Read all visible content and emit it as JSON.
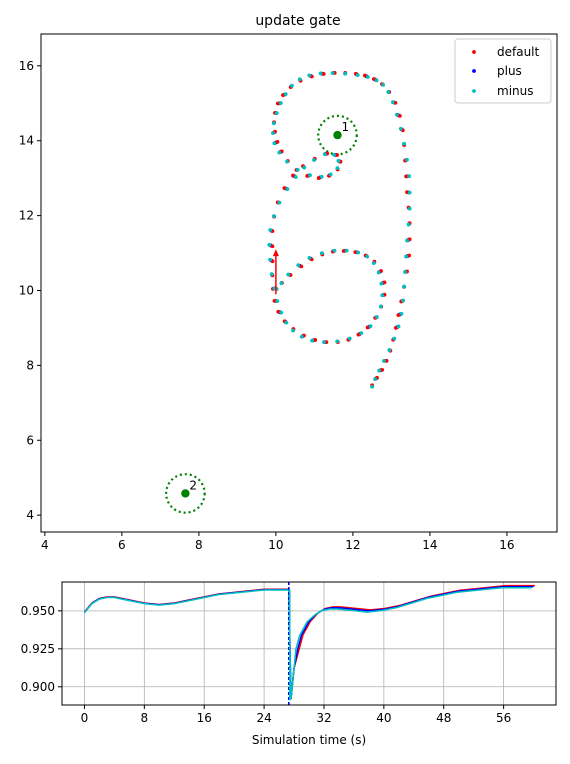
{
  "chart_data": [
    {
      "type": "scatter",
      "title": "update gate",
      "xlim": [
        3.9,
        17.3
      ],
      "ylim": [
        3.55,
        16.85
      ],
      "xticks": [
        4,
        6,
        8,
        10,
        12,
        14,
        16
      ],
      "yticks": [
        4,
        6,
        8,
        10,
        12,
        14,
        16
      ],
      "grid": false,
      "legend": "top-right",
      "series": [
        {
          "name": "default",
          "color": "#ff0000"
        },
        {
          "name": "plus",
          "color": "#0000ff"
        },
        {
          "name": "minus",
          "color": "#00bfbf"
        }
      ],
      "trajectory_default": [
        [
          12.5,
          7.45
        ],
        [
          12.6,
          7.65
        ],
        [
          12.72,
          7.87
        ],
        [
          12.84,
          8.12
        ],
        [
          12.96,
          8.4
        ],
        [
          13.06,
          8.7
        ],
        [
          13.15,
          9.02
        ],
        [
          13.22,
          9.36
        ],
        [
          13.28,
          9.72
        ],
        [
          13.33,
          10.1
        ],
        [
          13.38,
          10.5
        ],
        [
          13.42,
          10.92
        ],
        [
          13.44,
          11.35
        ],
        [
          13.46,
          11.78
        ],
        [
          13.46,
          12.2
        ],
        [
          13.44,
          12.62
        ],
        [
          13.42,
          13.05
        ],
        [
          13.38,
          13.48
        ],
        [
          13.33,
          13.9
        ],
        [
          13.27,
          14.3
        ],
        [
          13.18,
          14.68
        ],
        [
          13.07,
          15.02
        ],
        [
          12.93,
          15.3
        ],
        [
          12.77,
          15.5
        ],
        [
          12.58,
          15.63
        ],
        [
          12.35,
          15.72
        ],
        [
          12.1,
          15.77
        ],
        [
          11.8,
          15.8
        ],
        [
          11.5,
          15.81
        ],
        [
          11.2,
          15.79
        ],
        [
          10.9,
          15.73
        ],
        [
          10.63,
          15.62
        ],
        [
          10.4,
          15.45
        ],
        [
          10.22,
          15.23
        ],
        [
          10.09,
          15.0
        ],
        [
          10.0,
          14.74
        ],
        [
          9.95,
          14.48
        ],
        [
          9.95,
          14.22
        ],
        [
          10.0,
          13.95
        ],
        [
          10.12,
          13.7
        ],
        [
          10.3,
          13.45
        ],
        [
          10.55,
          13.22
        ],
        [
          10.85,
          13.07
        ],
        [
          11.15,
          13.02
        ],
        [
          11.4,
          13.08
        ],
        [
          11.6,
          13.25
        ],
        [
          11.65,
          13.45
        ],
        [
          11.55,
          13.62
        ],
        [
          11.3,
          13.65
        ],
        [
          11.0,
          13.5
        ],
        [
          10.72,
          13.3
        ],
        [
          10.48,
          13.05
        ],
        [
          10.26,
          12.72
        ],
        [
          10.07,
          12.35
        ],
        [
          9.95,
          11.98
        ],
        [
          9.88,
          11.6
        ],
        [
          9.87,
          11.2
        ],
        [
          9.88,
          10.8
        ],
        [
          9.9,
          10.42
        ],
        [
          9.94,
          10.05
        ],
        [
          10.0,
          9.72
        ],
        [
          10.1,
          9.42
        ],
        [
          10.25,
          9.16
        ],
        [
          10.45,
          8.95
        ],
        [
          10.7,
          8.78
        ],
        [
          10.98,
          8.67
        ],
        [
          11.28,
          8.62
        ],
        [
          11.6,
          8.63
        ],
        [
          11.9,
          8.7
        ],
        [
          12.18,
          8.84
        ],
        [
          12.42,
          9.03
        ],
        [
          12.6,
          9.28
        ],
        [
          12.73,
          9.57
        ],
        [
          12.79,
          9.88
        ],
        [
          12.78,
          10.2
        ],
        [
          12.7,
          10.5
        ],
        [
          12.55,
          10.75
        ],
        [
          12.35,
          10.92
        ],
        [
          12.1,
          11.02
        ],
        [
          11.8,
          11.06
        ],
        [
          11.5,
          11.05
        ],
        [
          11.2,
          10.98
        ],
        [
          10.9,
          10.85
        ],
        [
          10.62,
          10.66
        ],
        [
          10.35,
          10.42
        ],
        [
          10.15,
          10.2
        ],
        [
          10.0,
          10.05
        ]
      ],
      "arrow": {
        "x": 10.0,
        "y0": 9.9,
        "y1": 11.05,
        "color": "#ff0000"
      },
      "goals": [
        {
          "label": "1",
          "x": 11.6,
          "y": 14.15,
          "radius": 0.5
        },
        {
          "label": "2",
          "x": 7.65,
          "y": 4.58,
          "radius": 0.5
        }
      ]
    },
    {
      "type": "line",
      "xlabel": "Simulation time (s)",
      "xlim": [
        -3,
        63
      ],
      "ylim": [
        0.888,
        0.969
      ],
      "xticks": [
        0,
        8,
        16,
        24,
        32,
        40,
        48,
        56
      ],
      "yticks": [
        0.9,
        0.925,
        0.95
      ],
      "ytick_labels": [
        "0.900",
        "0.925",
        "0.950"
      ],
      "grid": true,
      "series": [
        {
          "name": "default",
          "color": "#ff0000"
        },
        {
          "name": "plus",
          "color": "#0000ff"
        },
        {
          "name": "minus",
          "color": "#00bfbf"
        }
      ],
      "x": [
        0,
        1,
        2,
        3,
        4,
        5,
        6,
        7,
        8,
        10,
        12,
        14,
        16,
        18,
        20,
        22,
        24,
        26,
        27,
        27.3,
        27.6,
        28,
        28.5,
        29,
        30,
        31,
        32,
        33,
        34,
        36,
        38,
        40,
        42,
        44,
        46,
        48,
        50,
        52,
        54,
        56,
        58,
        60
      ],
      "values_ref": [
        0.949,
        0.955,
        0.958,
        0.959,
        0.959,
        0.958,
        0.957,
        0.956,
        0.955,
        0.954,
        0.955,
        0.957,
        0.959,
        0.961,
        0.962,
        0.963,
        0.964,
        0.964,
        0.964,
        0.964,
        0.892,
        0.912,
        0.925,
        0.934,
        0.943,
        0.948,
        0.951,
        0.952,
        0.952,
        0.951,
        0.95,
        0.951,
        0.953,
        0.956,
        0.959,
        0.961,
        0.963,
        0.964,
        0.965,
        0.966,
        0.966,
        0.966
      ],
      "vline_x": 27.3
    }
  ]
}
